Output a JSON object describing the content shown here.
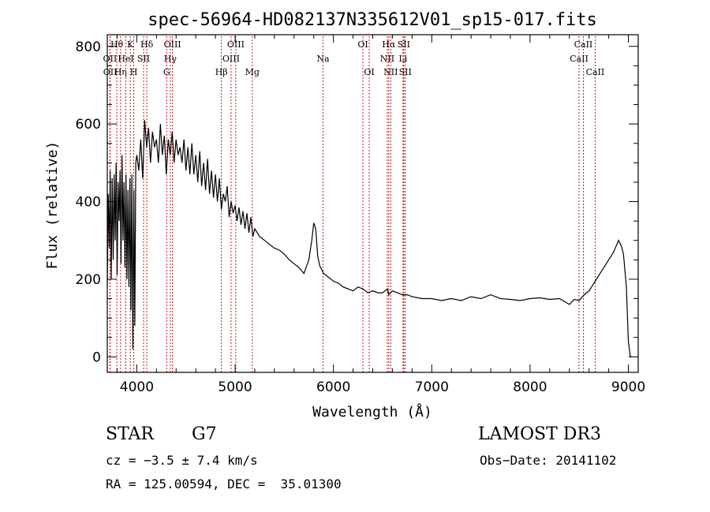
{
  "chart_data": {
    "type": "line",
    "title": "spec-56964-HD082137N335612V01_sp15-017.fits",
    "xlabel": "Wavelength (Å)",
    "ylabel": "Flux (relative)",
    "xlim": [
      3700,
      9100
    ],
    "ylim": [
      -40,
      830
    ],
    "xticks": [
      4000,
      5000,
      6000,
      7000,
      8000,
      9000
    ],
    "yticks": [
      0,
      200,
      400,
      600,
      800
    ],
    "series": [
      {
        "name": "flux",
        "x": [
          3700,
          3710,
          3720,
          3730,
          3740,
          3750,
          3760,
          3770,
          3780,
          3790,
          3800,
          3810,
          3820,
          3830,
          3840,
          3850,
          3860,
          3870,
          3880,
          3890,
          3900,
          3910,
          3920,
          3930,
          3940,
          3950,
          3960,
          3970,
          3980,
          3990,
          4000,
          4020,
          4040,
          4060,
          4080,
          4100,
          4120,
          4140,
          4160,
          4180,
          4200,
          4220,
          4240,
          4260,
          4280,
          4300,
          4320,
          4340,
          4360,
          4380,
          4400,
          4420,
          4440,
          4460,
          4480,
          4500,
          4520,
          4540,
          4560,
          4580,
          4600,
          4620,
          4640,
          4660,
          4680,
          4700,
          4720,
          4740,
          4760,
          4780,
          4800,
          4820,
          4840,
          4860,
          4880,
          4900,
          4920,
          4940,
          4960,
          4980,
          5000,
          5020,
          5040,
          5060,
          5080,
          5100,
          5120,
          5140,
          5160,
          5180,
          5200,
          5250,
          5300,
          5350,
          5400,
          5450,
          5500,
          5550,
          5600,
          5650,
          5700,
          5750,
          5780,
          5800,
          5820,
          5840,
          5860,
          5880,
          5900,
          5950,
          6000,
          6050,
          6100,
          6150,
          6200,
          6250,
          6300,
          6350,
          6400,
          6450,
          6500,
          6550,
          6563,
          6600,
          6650,
          6700,
          6750,
          6800,
          6900,
          7000,
          7100,
          7200,
          7300,
          7400,
          7500,
          7600,
          7700,
          7800,
          7900,
          8000,
          8100,
          8200,
          8300,
          8400,
          8450,
          8500,
          8550,
          8600,
          8650,
          8700,
          8750,
          8800,
          8850,
          8900,
          8930,
          8950,
          8980,
          9000,
          9020,
          9040
        ],
        "values": [
          180,
          420,
          280,
          480,
          200,
          460,
          250,
          470,
          300,
          500,
          210,
          450,
          350,
          480,
          240,
          520,
          300,
          450,
          230,
          470,
          200,
          430,
          180,
          460,
          120,
          470,
          20,
          430,
          80,
          500,
          520,
          480,
          560,
          460,
          610,
          540,
          590,
          500,
          580,
          540,
          560,
          500,
          600,
          520,
          570,
          470,
          560,
          520,
          580,
          500,
          560,
          520,
          540,
          500,
          560,
          480,
          540,
          470,
          550,
          470,
          520,
          450,
          530,
          440,
          500,
          430,
          510,
          420,
          480,
          410,
          470,
          400,
          460,
          380,
          420,
          400,
          440,
          360,
          400,
          370,
          390,
          350,
          385,
          340,
          375,
          330,
          370,
          320,
          360,
          310,
          330,
          310,
          300,
          290,
          280,
          275,
          265,
          250,
          240,
          230,
          215,
          250,
          300,
          345,
          330,
          260,
          235,
          225,
          215,
          205,
          195,
          190,
          180,
          175,
          170,
          180,
          175,
          165,
          170,
          165,
          165,
          175,
          160,
          170,
          165,
          160,
          160,
          155,
          150,
          150,
          145,
          150,
          145,
          155,
          150,
          160,
          150,
          148,
          145,
          150,
          152,
          148,
          150,
          135,
          148,
          145,
          160,
          170,
          190,
          210,
          230,
          250,
          270,
          300,
          285,
          265,
          180,
          40,
          0,
          0
        ]
      }
    ],
    "spectral_lines": [
      {
        "label": "OII",
        "wavelength": 3727,
        "row": 2
      },
      {
        "label": "OII",
        "wavelength": 3729,
        "row": 3
      },
      {
        "label": "Hθ",
        "wavelength": 3797,
        "row": 1
      },
      {
        "label": "Hη",
        "wavelength": 3835,
        "row": 3
      },
      {
        "label": "HeI",
        "wavelength": 3889,
        "row": 2
      },
      {
        "label": "K",
        "wavelength": 3934,
        "row": 1
      },
      {
        "label": "H",
        "wavelength": 3969,
        "row": 3
      },
      {
        "label": "SII",
        "wavelength": 4069,
        "row": 2
      },
      {
        "label": "Hδ",
        "wavelength": 4102,
        "row": 1
      },
      {
        "label": "G",
        "wavelength": 4304,
        "row": 3
      },
      {
        "label": "Hγ",
        "wavelength": 4341,
        "row": 2
      },
      {
        "label": "OIII",
        "wavelength": 4363,
        "row": 1
      },
      {
        "label": "Hβ",
        "wavelength": 4861,
        "row": 3
      },
      {
        "label": "OIII",
        "wavelength": 4959,
        "row": 2
      },
      {
        "label": "OIII",
        "wavelength": 5007,
        "row": 1
      },
      {
        "label": "Mg",
        "wavelength": 5175,
        "row": 3
      },
      {
        "label": "Na",
        "wavelength": 5894,
        "row": 2
      },
      {
        "label": "OI",
        "wavelength": 6300,
        "row": 1
      },
      {
        "label": "OI",
        "wavelength": 6364,
        "row": 3
      },
      {
        "label": "NII",
        "wavelength": 6548,
        "row": 2
      },
      {
        "label": "Hα",
        "wavelength": 6563,
        "row": 1
      },
      {
        "label": "NII",
        "wavelength": 6583,
        "row": 3
      },
      {
        "label": "Li",
        "wavelength": 6708,
        "row": 2
      },
      {
        "label": "SII",
        "wavelength": 6716,
        "row": 1
      },
      {
        "label": "SII",
        "wavelength": 6731,
        "row": 3
      },
      {
        "label": "CaII",
        "wavelength": 8498,
        "row": 2
      },
      {
        "label": "CaII",
        "wavelength": 8542,
        "row": 1
      },
      {
        "label": "CaII",
        "wavelength": 8662,
        "row": 3
      }
    ]
  },
  "info": {
    "object_class": "STAR",
    "subclass": "G7",
    "survey": "LAMOST DR3",
    "cz": "cz = −3.5 ± 7.4 km/s",
    "obs_date": "Obs−Date: 20141102",
    "coords": "RA = 125.00594, DEC =  35.01300"
  },
  "colors": {
    "spectrum": "#000000",
    "line_marker": "#c00000",
    "axis": "#000000"
  }
}
